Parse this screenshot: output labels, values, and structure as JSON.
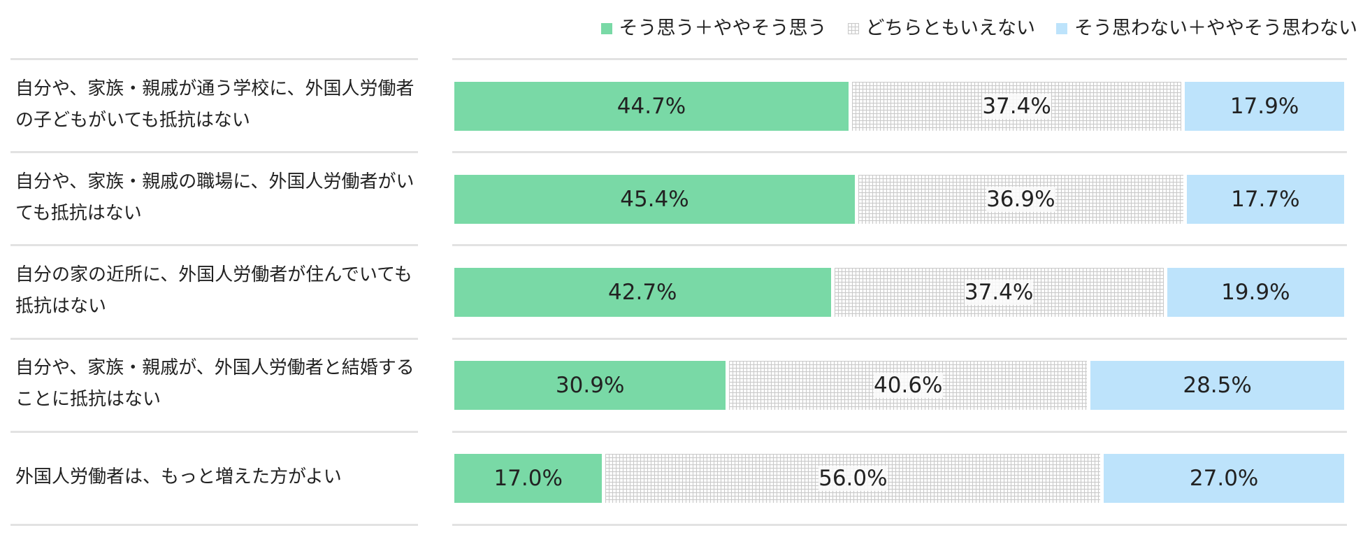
{
  "chart_data": {
    "type": "stacked-bar-horizontal",
    "categories": [
      "自分や、家族・親戚が通う学校に、外国人労働者の子どもがいても抵抗はない",
      "自分や、家族・親戚の職場に、外国人労働者がいても抵抗はない",
      "自分の家の近所に、外国人労働者が住んでいても抵抗はない",
      "自分や、家族・親戚が、外国人労働者と結婚することに抵抗はない",
      "外国人労働者は、もっと増えた方がよい"
    ],
    "series": [
      {
        "name": "そう思う＋ややそう思う",
        "color": "#79d9a6",
        "values": [
          44.7,
          45.4,
          42.7,
          30.9,
          17.0
        ],
        "value_labels": [
          "44.7%",
          "45.4%",
          "42.7%",
          "30.9%",
          "17.0%"
        ]
      },
      {
        "name": "どちらともいえない",
        "color": "#d9d9d9",
        "pattern": "grid",
        "values": [
          37.4,
          36.9,
          37.4,
          40.6,
          56.0
        ],
        "value_labels": [
          "37.4%",
          "36.9%",
          "37.4%",
          "40.6%",
          "56.0%"
        ]
      },
      {
        "name": "そう思わない＋ややそう思わない",
        "color": "#bde3fb",
        "values": [
          17.9,
          17.7,
          19.9,
          28.5,
          27.0
        ],
        "value_labels": [
          "17.9%",
          "17.7%",
          "19.9%",
          "28.5%",
          "27.0%"
        ]
      }
    ],
    "legend": "top-right"
  }
}
